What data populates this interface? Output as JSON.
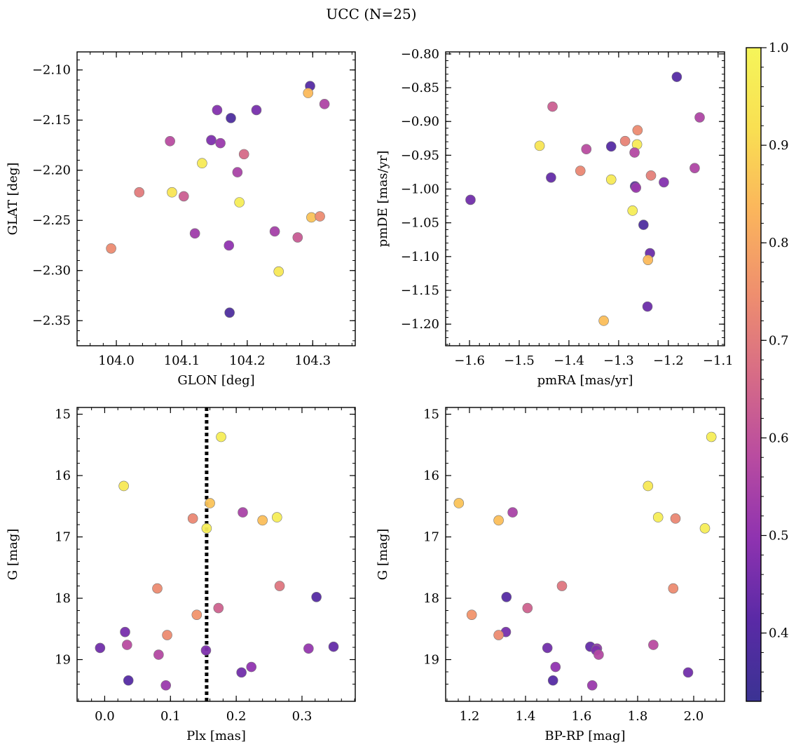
{
  "figure": {
    "title": "UCC (N=25)"
  },
  "colorbar": {
    "cmap": [
      "#3b3393",
      "#5a2aa6",
      "#8f33b0",
      "#b94ca0",
      "#d76c86",
      "#ef8f6e",
      "#fbb55c",
      "#f9df52",
      "#f5f55a"
    ],
    "range": [
      0.33,
      1.0
    ],
    "ticks": [
      "0.4",
      "0.5",
      "0.6",
      "0.7",
      "0.8",
      "0.9",
      "1.0"
    ],
    "tick_values": [
      0.4,
      0.5,
      0.6,
      0.7,
      0.8,
      0.9,
      1.0
    ]
  },
  "chart_data": [
    {
      "type": "scatter",
      "panel": "top-left",
      "xlabel": "GLON [deg]",
      "ylabel": "GLAT [deg]",
      "xlim": [
        103.94,
        104.365
      ],
      "ylim": [
        -2.375,
        -2.082
      ],
      "xticks": [
        104.0,
        104.1,
        104.2,
        104.3
      ],
      "xtick_labels": [
        "104.0",
        "104.1",
        "104.2",
        "104.3"
      ],
      "yticks": [
        -2.1,
        -2.15,
        -2.2,
        -2.25,
        -2.3,
        -2.35
      ],
      "ytick_labels": [
        "−2.10",
        "−2.15",
        "−2.20",
        "−2.25",
        "−2.30",
        "−2.35"
      ],
      "points": [
        {
          "x": 104.296,
          "y": -2.116,
          "c": 0.4
        },
        {
          "x": 104.293,
          "y": -2.123,
          "c": 0.84
        },
        {
          "x": 104.318,
          "y": -2.134,
          "c": 0.56
        },
        {
          "x": 104.154,
          "y": -2.14,
          "c": 0.48
        },
        {
          "x": 104.214,
          "y": -2.14,
          "c": 0.46
        },
        {
          "x": 104.175,
          "y": -2.148,
          "c": 0.38
        },
        {
          "x": 104.145,
          "y": -2.17,
          "c": 0.47
        },
        {
          "x": 104.159,
          "y": -2.173,
          "c": 0.52
        },
        {
          "x": 104.082,
          "y": -2.171,
          "c": 0.58
        },
        {
          "x": 104.195,
          "y": -2.184,
          "c": 0.66
        },
        {
          "x": 104.131,
          "y": -2.193,
          "c": 0.96
        },
        {
          "x": 104.185,
          "y": -2.202,
          "c": 0.55
        },
        {
          "x": 104.035,
          "y": -2.222,
          "c": 0.7
        },
        {
          "x": 104.085,
          "y": -2.222,
          "c": 0.94
        },
        {
          "x": 104.103,
          "y": -2.226,
          "c": 0.63
        },
        {
          "x": 104.188,
          "y": -2.232,
          "c": 0.97
        },
        {
          "x": 104.298,
          "y": -2.247,
          "c": 0.86
        },
        {
          "x": 104.311,
          "y": -2.246,
          "c": 0.74
        },
        {
          "x": 104.12,
          "y": -2.263,
          "c": 0.53
        },
        {
          "x": 104.242,
          "y": -2.261,
          "c": 0.54
        },
        {
          "x": 104.277,
          "y": -2.267,
          "c": 0.62
        },
        {
          "x": 104.172,
          "y": -2.275,
          "c": 0.5
        },
        {
          "x": 103.992,
          "y": -2.278,
          "c": 0.74
        },
        {
          "x": 104.248,
          "y": -2.301,
          "c": 0.95
        },
        {
          "x": 104.173,
          "y": -2.342,
          "c": 0.38
        }
      ]
    },
    {
      "type": "scatter",
      "panel": "top-right",
      "xlabel": "pmRA [mas/yr]",
      "ylabel": "pmDE [mas/yr]",
      "xlim": [
        -1.648,
        -1.087
      ],
      "ylim": [
        -1.232,
        -0.797
      ],
      "xticks": [
        -1.6,
        -1.5,
        -1.4,
        -1.3,
        -1.2,
        -1.1
      ],
      "xtick_labels": [
        "−1.6",
        "−1.5",
        "−1.4",
        "−1.3",
        "−1.2",
        "−1.1"
      ],
      "yticks": [
        -0.8,
        -0.85,
        -0.9,
        -0.95,
        -1.0,
        -1.05,
        -1.1,
        -1.15,
        -1.2
      ],
      "ytick_labels": [
        "−0.80",
        "−0.85",
        "−0.90",
        "−0.95",
        "−1.00",
        "−1.05",
        "−1.10",
        "−1.15",
        "−1.20"
      ],
      "points": [
        {
          "x": -1.183,
          "y": -0.834,
          "c": 0.4
        },
        {
          "x": -1.433,
          "y": -0.878,
          "c": 0.63
        },
        {
          "x": -1.137,
          "y": -0.894,
          "c": 0.56
        },
        {
          "x": -1.262,
          "y": -0.913,
          "c": 0.74
        },
        {
          "x": -1.287,
          "y": -0.929,
          "c": 0.72
        },
        {
          "x": -1.459,
          "y": -0.936,
          "c": 0.94
        },
        {
          "x": -1.263,
          "y": -0.934,
          "c": 0.96
        },
        {
          "x": -1.315,
          "y": -0.937,
          "c": 0.4
        },
        {
          "x": -1.365,
          "y": -0.941,
          "c": 0.58
        },
        {
          "x": -1.268,
          "y": -0.946,
          "c": 0.57
        },
        {
          "x": -1.147,
          "y": -0.969,
          "c": 0.56
        },
        {
          "x": -1.377,
          "y": -0.973,
          "c": 0.73
        },
        {
          "x": -1.235,
          "y": -0.98,
          "c": 0.71
        },
        {
          "x": -1.436,
          "y": -0.983,
          "c": 0.43
        },
        {
          "x": -1.315,
          "y": -0.986,
          "c": 0.96
        },
        {
          "x": -1.209,
          "y": -0.99,
          "c": 0.48
        },
        {
          "x": -1.267,
          "y": -0.996,
          "c": 0.4
        },
        {
          "x": -1.265,
          "y": -0.998,
          "c": 0.52
        },
        {
          "x": -1.598,
          "y": -1.016,
          "c": 0.45
        },
        {
          "x": -1.272,
          "y": -1.032,
          "c": 0.97
        },
        {
          "x": -1.25,
          "y": -1.053,
          "c": 0.38
        },
        {
          "x": -1.237,
          "y": -1.095,
          "c": 0.44
        },
        {
          "x": -1.241,
          "y": -1.105,
          "c": 0.84
        },
        {
          "x": -1.242,
          "y": -1.174,
          "c": 0.44
        },
        {
          "x": -1.33,
          "y": -1.195,
          "c": 0.85
        }
      ]
    },
    {
      "type": "scatter",
      "panel": "bottom-left",
      "xlabel": "Plx [mas]",
      "ylabel": "G [mag]",
      "xlim": [
        -0.042,
        0.381
      ],
      "ylim": [
        19.68,
        14.89
      ],
      "y_inverted": true,
      "xticks": [
        0.0,
        0.1,
        0.2,
        0.3
      ],
      "xtick_labels": [
        "0.0",
        "0.1",
        "0.2",
        "0.3"
      ],
      "yticks": [
        15,
        16,
        17,
        18,
        19
      ],
      "ytick_labels": [
        "15",
        "16",
        "17",
        "18",
        "19"
      ],
      "vline": {
        "x": 0.155,
        "style": "dotted",
        "color": "#000000"
      },
      "points": [
        {
          "x": 0.177,
          "y": 15.37,
          "c": 0.97
        },
        {
          "x": 0.029,
          "y": 16.17,
          "c": 0.95
        },
        {
          "x": 0.16,
          "y": 16.45,
          "c": 0.86
        },
        {
          "x": 0.21,
          "y": 16.6,
          "c": 0.55
        },
        {
          "x": 0.262,
          "y": 16.68,
          "c": 0.97
        },
        {
          "x": 0.134,
          "y": 16.7,
          "c": 0.73
        },
        {
          "x": 0.24,
          "y": 16.73,
          "c": 0.85
        },
        {
          "x": 0.155,
          "y": 16.86,
          "c": 0.97
        },
        {
          "x": 0.266,
          "y": 17.8,
          "c": 0.69
        },
        {
          "x": 0.08,
          "y": 17.84,
          "c": 0.74
        },
        {
          "x": 0.322,
          "y": 17.98,
          "c": 0.4
        },
        {
          "x": 0.173,
          "y": 18.16,
          "c": 0.64
        },
        {
          "x": 0.14,
          "y": 18.27,
          "c": 0.76
        },
        {
          "x": 0.031,
          "y": 18.55,
          "c": 0.46
        },
        {
          "x": 0.095,
          "y": 18.6,
          "c": 0.74
        },
        {
          "x": 0.034,
          "y": 18.76,
          "c": 0.58
        },
        {
          "x": 0.348,
          "y": 18.79,
          "c": 0.43
        },
        {
          "x": -0.007,
          "y": 18.81,
          "c": 0.45
        },
        {
          "x": 0.31,
          "y": 18.82,
          "c": 0.51
        },
        {
          "x": 0.154,
          "y": 18.85,
          "c": 0.47
        },
        {
          "x": 0.082,
          "y": 18.92,
          "c": 0.57
        },
        {
          "x": 0.223,
          "y": 19.12,
          "c": 0.5
        },
        {
          "x": 0.208,
          "y": 19.21,
          "c": 0.45
        },
        {
          "x": 0.036,
          "y": 19.34,
          "c": 0.4
        },
        {
          "x": 0.093,
          "y": 19.42,
          "c": 0.52
        }
      ]
    },
    {
      "type": "scatter",
      "panel": "bottom-right",
      "xlabel": "BP-RP [mag]",
      "ylabel": "G [mag]",
      "xlim": [
        1.115,
        2.11
      ],
      "ylim": [
        19.68,
        14.89
      ],
      "y_inverted": true,
      "xticks": [
        1.2,
        1.4,
        1.6,
        1.8,
        2.0
      ],
      "xtick_labels": [
        "1.2",
        "1.4",
        "1.6",
        "1.8",
        "2.0"
      ],
      "yticks": [
        15,
        16,
        17,
        18,
        19
      ],
      "ytick_labels": [
        "15",
        "16",
        "17",
        "18",
        "19"
      ],
      "points": [
        {
          "x": 2.063,
          "y": 15.37,
          "c": 0.97
        },
        {
          "x": 1.837,
          "y": 16.17,
          "c": 0.95
        },
        {
          "x": 1.162,
          "y": 16.45,
          "c": 0.86
        },
        {
          "x": 1.354,
          "y": 16.6,
          "c": 0.55
        },
        {
          "x": 1.873,
          "y": 16.68,
          "c": 0.97
        },
        {
          "x": 1.935,
          "y": 16.7,
          "c": 0.73
        },
        {
          "x": 1.304,
          "y": 16.73,
          "c": 0.85
        },
        {
          "x": 2.04,
          "y": 16.86,
          "c": 0.97
        },
        {
          "x": 1.53,
          "y": 17.8,
          "c": 0.69
        },
        {
          "x": 1.927,
          "y": 17.84,
          "c": 0.74
        },
        {
          "x": 1.332,
          "y": 17.98,
          "c": 0.4
        },
        {
          "x": 1.407,
          "y": 18.16,
          "c": 0.64
        },
        {
          "x": 1.208,
          "y": 18.27,
          "c": 0.76
        },
        {
          "x": 1.33,
          "y": 18.55,
          "c": 0.46
        },
        {
          "x": 1.304,
          "y": 18.6,
          "c": 0.74
        },
        {
          "x": 1.856,
          "y": 18.76,
          "c": 0.58
        },
        {
          "x": 1.631,
          "y": 18.79,
          "c": 0.43
        },
        {
          "x": 1.478,
          "y": 18.81,
          "c": 0.45
        },
        {
          "x": 1.655,
          "y": 18.82,
          "c": 0.51
        },
        {
          "x": 1.652,
          "y": 18.85,
          "c": 0.47
        },
        {
          "x": 1.661,
          "y": 18.92,
          "c": 0.57
        },
        {
          "x": 1.507,
          "y": 19.12,
          "c": 0.5
        },
        {
          "x": 1.98,
          "y": 19.21,
          "c": 0.45
        },
        {
          "x": 1.498,
          "y": 19.34,
          "c": 0.4
        },
        {
          "x": 1.638,
          "y": 19.42,
          "c": 0.52
        }
      ]
    }
  ]
}
